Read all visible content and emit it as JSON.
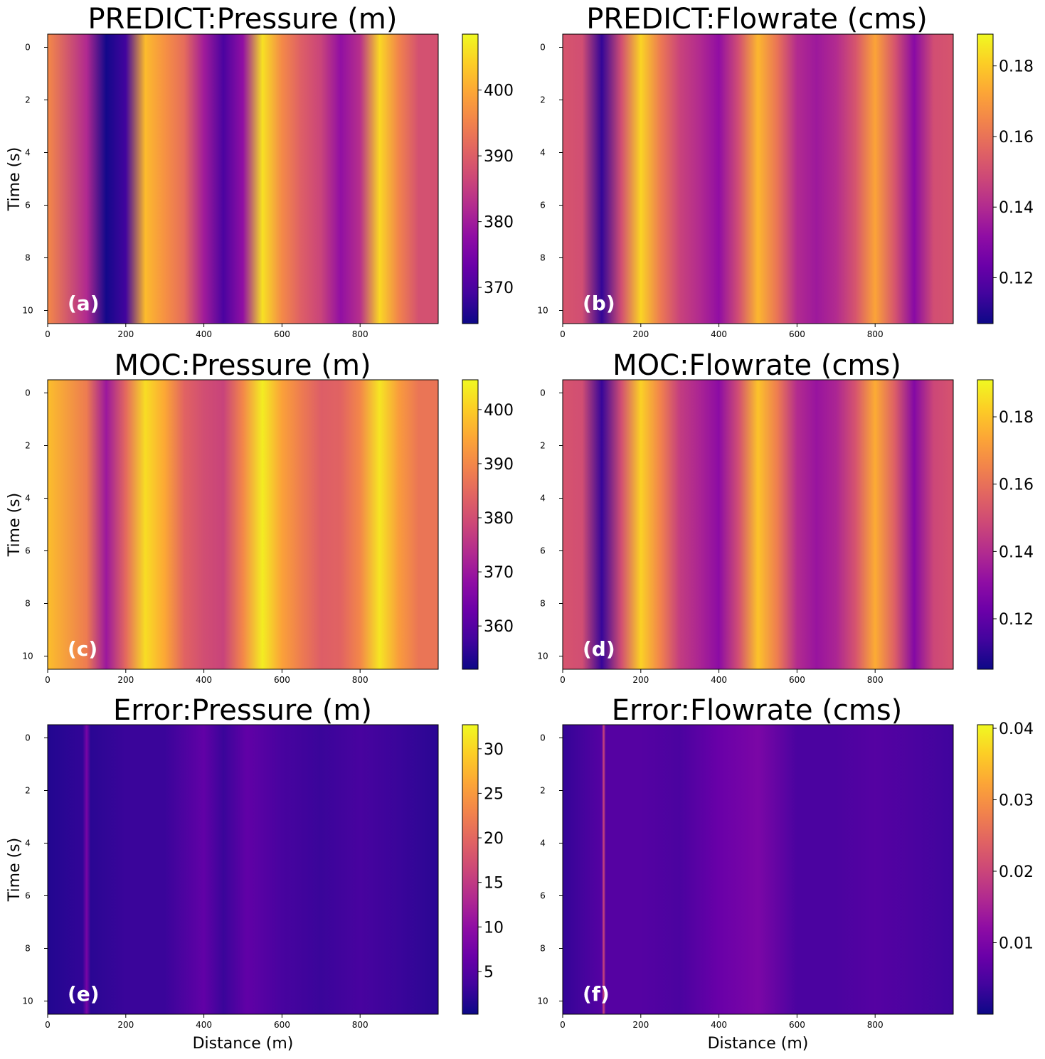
{
  "chart_data": [
    {
      "id": "a",
      "type": "heatmap",
      "panel_label": "(a)",
      "title": "PREDICT:Pressure (m)",
      "xlabel": "",
      "ylabel": "Time (s)",
      "xlim": [
        0,
        1000
      ],
      "ylim": [
        10.5,
        -0.5
      ],
      "xticks": [
        "0",
        "200",
        "400",
        "600",
        "800"
      ],
      "yticks": [
        "0",
        "2",
        "4",
        "6",
        "8",
        "10"
      ],
      "colormap": "plasma",
      "colorbar": {
        "range": [
          364.5,
          408.5
        ],
        "ticks": [
          "370",
          "380",
          "390",
          "400"
        ]
      },
      "stops": [
        {
          "x": 0,
          "value": 396
        },
        {
          "x": 100,
          "value": 382
        },
        {
          "x": 150,
          "value": 365
        },
        {
          "x": 200,
          "value": 369
        },
        {
          "x": 250,
          "value": 402
        },
        {
          "x": 300,
          "value": 397
        },
        {
          "x": 350,
          "value": 392
        },
        {
          "x": 400,
          "value": 380
        },
        {
          "x": 450,
          "value": 370
        },
        {
          "x": 500,
          "value": 378
        },
        {
          "x": 550,
          "value": 406
        },
        {
          "x": 600,
          "value": 396
        },
        {
          "x": 650,
          "value": 390
        },
        {
          "x": 700,
          "value": 386
        },
        {
          "x": 750,
          "value": 378
        },
        {
          "x": 800,
          "value": 383
        },
        {
          "x": 850,
          "value": 405
        },
        {
          "x": 900,
          "value": 395
        },
        {
          "x": 950,
          "value": 388
        },
        {
          "x": 1000,
          "value": 388
        }
      ]
    },
    {
      "id": "b",
      "type": "heatmap",
      "panel_label": "(b)",
      "title": "PREDICT:Flowrate (cms)",
      "xlabel": "",
      "ylabel": "",
      "xlim": [
        0,
        1000
      ],
      "ylim": [
        10.5,
        -0.5
      ],
      "xticks": [
        "0",
        "200",
        "400",
        "600",
        "800"
      ],
      "yticks": [
        "0",
        "2",
        "4",
        "6",
        "8",
        "10"
      ],
      "colormap": "plasma",
      "colorbar": {
        "range": [
          0.107,
          0.189
        ],
        "ticks": [
          "0.12",
          "0.14",
          "0.16",
          "0.18"
        ]
      },
      "stops": [
        {
          "x": 0,
          "value": 0.152
        },
        {
          "x": 50,
          "value": 0.15
        },
        {
          "x": 100,
          "value": 0.113
        },
        {
          "x": 150,
          "value": 0.15
        },
        {
          "x": 200,
          "value": 0.182
        },
        {
          "x": 250,
          "value": 0.162
        },
        {
          "x": 300,
          "value": 0.147
        },
        {
          "x": 350,
          "value": 0.14
        },
        {
          "x": 400,
          "value": 0.132
        },
        {
          "x": 450,
          "value": 0.15
        },
        {
          "x": 500,
          "value": 0.176
        },
        {
          "x": 550,
          "value": 0.16
        },
        {
          "x": 600,
          "value": 0.14
        },
        {
          "x": 650,
          "value": 0.135
        },
        {
          "x": 700,
          "value": 0.14
        },
        {
          "x": 750,
          "value": 0.152
        },
        {
          "x": 800,
          "value": 0.172
        },
        {
          "x": 850,
          "value": 0.152
        },
        {
          "x": 900,
          "value": 0.13
        },
        {
          "x": 950,
          "value": 0.15
        },
        {
          "x": 1000,
          "value": 0.152
        }
      ]
    },
    {
      "id": "c",
      "type": "heatmap",
      "panel_label": "(c)",
      "title": "MOC:Pressure (m)",
      "xlabel": "",
      "ylabel": "Time (s)",
      "xlim": [
        0,
        1000
      ],
      "ylim": [
        10.5,
        -0.5
      ],
      "xticks": [
        "0",
        "200",
        "400",
        "600",
        "800"
      ],
      "yticks": [
        "0",
        "2",
        "4",
        "6",
        "8",
        "10"
      ],
      "colormap": "plasma",
      "colorbar": {
        "range": [
          352,
          405.5
        ],
        "ticks": [
          "360",
          "370",
          "380",
          "390",
          "400"
        ]
      },
      "stops": [
        {
          "x": 0,
          "value": 398
        },
        {
          "x": 100,
          "value": 388
        },
        {
          "x": 150,
          "value": 370
        },
        {
          "x": 200,
          "value": 385
        },
        {
          "x": 250,
          "value": 402
        },
        {
          "x": 300,
          "value": 395
        },
        {
          "x": 350,
          "value": 384
        },
        {
          "x": 400,
          "value": 380
        },
        {
          "x": 450,
          "value": 378
        },
        {
          "x": 500,
          "value": 390
        },
        {
          "x": 550,
          "value": 404
        },
        {
          "x": 600,
          "value": 394
        },
        {
          "x": 650,
          "value": 388
        },
        {
          "x": 700,
          "value": 383
        },
        {
          "x": 750,
          "value": 384
        },
        {
          "x": 800,
          "value": 390
        },
        {
          "x": 850,
          "value": 403
        },
        {
          "x": 900,
          "value": 393
        },
        {
          "x": 950,
          "value": 387
        },
        {
          "x": 1000,
          "value": 387
        }
      ]
    },
    {
      "id": "d",
      "type": "heatmap",
      "panel_label": "(d)",
      "title": "MOC:Flowrate (cms)",
      "xlabel": "",
      "ylabel": "",
      "xlim": [
        0,
        1000
      ],
      "ylim": [
        10.5,
        -0.5
      ],
      "xticks": [
        "0",
        "200",
        "400",
        "600",
        "800"
      ],
      "yticks": [
        "0",
        "2",
        "4",
        "6",
        "8",
        "10"
      ],
      "colormap": "plasma",
      "colorbar": {
        "range": [
          0.105,
          0.191
        ],
        "ticks": [
          "0.12",
          "0.14",
          "0.16",
          "0.18"
        ]
      },
      "stops": [
        {
          "x": 0,
          "value": 0.152
        },
        {
          "x": 50,
          "value": 0.15
        },
        {
          "x": 100,
          "value": 0.112
        },
        {
          "x": 150,
          "value": 0.15
        },
        {
          "x": 200,
          "value": 0.183
        },
        {
          "x": 250,
          "value": 0.165
        },
        {
          "x": 300,
          "value": 0.145
        },
        {
          "x": 350,
          "value": 0.138
        },
        {
          "x": 400,
          "value": 0.13
        },
        {
          "x": 450,
          "value": 0.15
        },
        {
          "x": 500,
          "value": 0.18
        },
        {
          "x": 550,
          "value": 0.163
        },
        {
          "x": 600,
          "value": 0.14
        },
        {
          "x": 650,
          "value": 0.133
        },
        {
          "x": 700,
          "value": 0.138
        },
        {
          "x": 750,
          "value": 0.152
        },
        {
          "x": 800,
          "value": 0.175
        },
        {
          "x": 850,
          "value": 0.155
        },
        {
          "x": 900,
          "value": 0.128
        },
        {
          "x": 950,
          "value": 0.148
        },
        {
          "x": 1000,
          "value": 0.152
        }
      ]
    },
    {
      "id": "e",
      "type": "heatmap",
      "panel_label": "(e)",
      "title": "Error:Pressure (m)",
      "xlabel": "Distance (m)",
      "ylabel": "Time (s)",
      "xlim": [
        0,
        1000
      ],
      "ylim": [
        10.5,
        -0.5
      ],
      "xticks": [
        "0",
        "200",
        "400",
        "600",
        "800"
      ],
      "yticks": [
        "0",
        "2",
        "4",
        "6",
        "8",
        "10"
      ],
      "colormap": "plasma",
      "colorbar": {
        "range": [
          0.2,
          32.7
        ],
        "ticks": [
          "5",
          "10",
          "15",
          "20",
          "25",
          "30"
        ]
      },
      "stops": [
        {
          "x": 0,
          "value": 1.5
        },
        {
          "x": 90,
          "value": 2.5
        },
        {
          "x": 100,
          "value": 8
        },
        {
          "x": 110,
          "value": 2
        },
        {
          "x": 200,
          "value": 3
        },
        {
          "x": 300,
          "value": 3
        },
        {
          "x": 400,
          "value": 6
        },
        {
          "x": 450,
          "value": 3
        },
        {
          "x": 510,
          "value": 6
        },
        {
          "x": 600,
          "value": 4
        },
        {
          "x": 700,
          "value": 3
        },
        {
          "x": 800,
          "value": 4
        },
        {
          "x": 900,
          "value": 3
        },
        {
          "x": 1000,
          "value": 2
        }
      ]
    },
    {
      "id": "f",
      "type": "heatmap",
      "panel_label": "(f)",
      "title": "Error:Flowrate (cms)",
      "xlabel": "Distance (m)",
      "ylabel": "",
      "xlim": [
        0,
        1000
      ],
      "ylim": [
        10.5,
        -0.5
      ],
      "xticks": [
        "0",
        "200",
        "400",
        "600",
        "800"
      ],
      "yticks": [
        "0",
        "2",
        "4",
        "6",
        "8",
        "10"
      ],
      "colormap": "plasma",
      "colorbar": {
        "range": [
          0.0,
          0.0405
        ],
        "ticks": [
          "0.01",
          "0.02",
          "0.03",
          "0.04"
        ]
      },
      "stops": [
        {
          "x": 0,
          "value": 0.003
        },
        {
          "x": 100,
          "value": 0.006
        },
        {
          "x": 105,
          "value": 0.02
        },
        {
          "x": 110,
          "value": 0.006
        },
        {
          "x": 200,
          "value": 0.006
        },
        {
          "x": 300,
          "value": 0.005
        },
        {
          "x": 400,
          "value": 0.008
        },
        {
          "x": 500,
          "value": 0.01
        },
        {
          "x": 600,
          "value": 0.005
        },
        {
          "x": 700,
          "value": 0.005
        },
        {
          "x": 800,
          "value": 0.006
        },
        {
          "x": 900,
          "value": 0.005
        },
        {
          "x": 1000,
          "value": 0.004
        }
      ]
    }
  ]
}
